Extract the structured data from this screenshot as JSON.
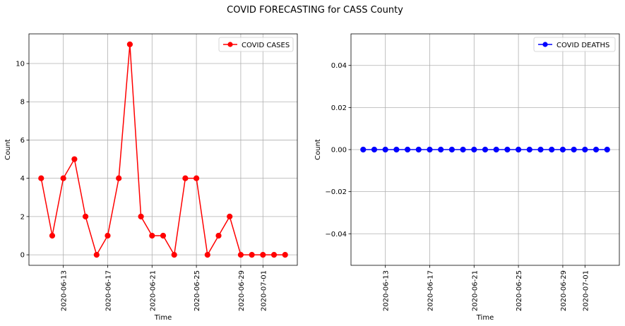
{
  "figure": {
    "title": "COVID FORECASTING for CASS County"
  },
  "chart_data": [
    {
      "type": "line",
      "title": "",
      "xlabel": "Time",
      "ylabel": "Count",
      "x": [
        "2020-06-11",
        "2020-06-12",
        "2020-06-13",
        "2020-06-14",
        "2020-06-15",
        "2020-06-16",
        "2020-06-17",
        "2020-06-18",
        "2020-06-19",
        "2020-06-20",
        "2020-06-21",
        "2020-06-22",
        "2020-06-23",
        "2020-06-24",
        "2020-06-25",
        "2020-06-26",
        "2020-06-27",
        "2020-06-28",
        "2020-06-29",
        "2020-06-30",
        "2020-07-01",
        "2020-07-02",
        "2020-07-03"
      ],
      "xticks": [
        "2020-06-13",
        "2020-06-17",
        "2020-06-21",
        "2020-06-25",
        "2020-06-29",
        "2020-07-01"
      ],
      "yticks": [
        0,
        2,
        4,
        6,
        8,
        10
      ],
      "ylim": [
        -0.55,
        11.55
      ],
      "grid": true,
      "legend_position": "top-right",
      "series": [
        {
          "name": "COVID CASES",
          "color": "#ff0000",
          "values": [
            4,
            1,
            4,
            5,
            2,
            0,
            1,
            4,
            11,
            2,
            1,
            1,
            0,
            4,
            4,
            0,
            1,
            2,
            0,
            0,
            0,
            0,
            0
          ]
        }
      ]
    },
    {
      "type": "line",
      "title": "",
      "xlabel": "Time",
      "ylabel": "Count",
      "x": [
        "2020-06-11",
        "2020-06-12",
        "2020-06-13",
        "2020-06-14",
        "2020-06-15",
        "2020-06-16",
        "2020-06-17",
        "2020-06-18",
        "2020-06-19",
        "2020-06-20",
        "2020-06-21",
        "2020-06-22",
        "2020-06-23",
        "2020-06-24",
        "2020-06-25",
        "2020-06-26",
        "2020-06-27",
        "2020-06-28",
        "2020-06-29",
        "2020-06-30",
        "2020-07-01",
        "2020-07-02",
        "2020-07-03"
      ],
      "xticks": [
        "2020-06-13",
        "2020-06-17",
        "2020-06-21",
        "2020-06-25",
        "2020-06-29",
        "2020-07-01"
      ],
      "yticks": [
        -0.04,
        -0.02,
        0.0,
        0.02,
        0.04
      ],
      "ytick_labels": [
        "−0.04",
        "−0.02",
        "0.00",
        "0.02",
        "0.04"
      ],
      "ylim": [
        -0.055,
        0.055
      ],
      "grid": true,
      "legend_position": "top-right",
      "series": [
        {
          "name": "COVID DEATHS",
          "color": "#0000ff",
          "values": [
            0,
            0,
            0,
            0,
            0,
            0,
            0,
            0,
            0,
            0,
            0,
            0,
            0,
            0,
            0,
            0,
            0,
            0,
            0,
            0,
            0,
            0,
            0
          ]
        }
      ]
    }
  ]
}
